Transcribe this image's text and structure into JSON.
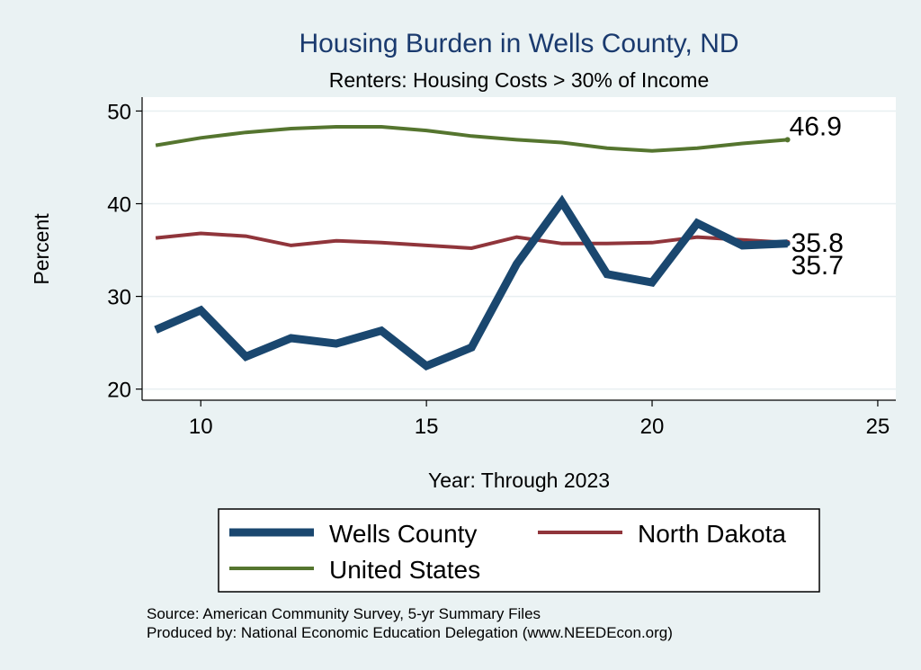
{
  "chart_data": {
    "type": "line",
    "title": "Housing Burden in Wells County, ND",
    "subtitle": "Renters: Housing Costs > 30% of Income",
    "xlabel": "Year: Through 2023",
    "ylabel": "Percent",
    "xlim": [
      8.7,
      25.4
    ],
    "ylim": [
      18.8,
      51.5
    ],
    "x_ticks": [
      10,
      15,
      20,
      25
    ],
    "y_ticks": [
      20,
      30,
      40,
      50
    ],
    "x": [
      9,
      10,
      11,
      12,
      13,
      14,
      15,
      16,
      17,
      18,
      19,
      20,
      21,
      22,
      23
    ],
    "series": [
      {
        "name": "Wells County",
        "color": "#1a476f",
        "values": [
          26.4,
          28.5,
          23.5,
          25.5,
          24.9,
          26.3,
          22.5,
          24.5,
          33.5,
          40.2,
          32.4,
          31.5,
          37.9,
          35.5,
          35.7
        ],
        "end_label": "35.7"
      },
      {
        "name": "North Dakota",
        "color": "#90353b",
        "values": [
          36.3,
          36.8,
          36.5,
          35.5,
          36.0,
          35.8,
          35.5,
          35.2,
          36.4,
          35.7,
          35.7,
          35.8,
          36.4,
          36.1,
          35.8
        ],
        "end_label": "35.8"
      },
      {
        "name": "United States",
        "color": "#55752f",
        "values": [
          46.3,
          47.1,
          47.7,
          48.1,
          48.3,
          48.3,
          47.9,
          47.3,
          46.9,
          46.6,
          46.0,
          45.7,
          46.0,
          46.5,
          46.9
        ],
        "end_label": "46.9"
      }
    ],
    "legend_position": "bottom"
  },
  "footer": {
    "source": "Source: American Community Survey, 5-yr Summary Files",
    "produced_by": "Produced by: National Economic Education Delegation (www.NEEDEcon.org)"
  }
}
